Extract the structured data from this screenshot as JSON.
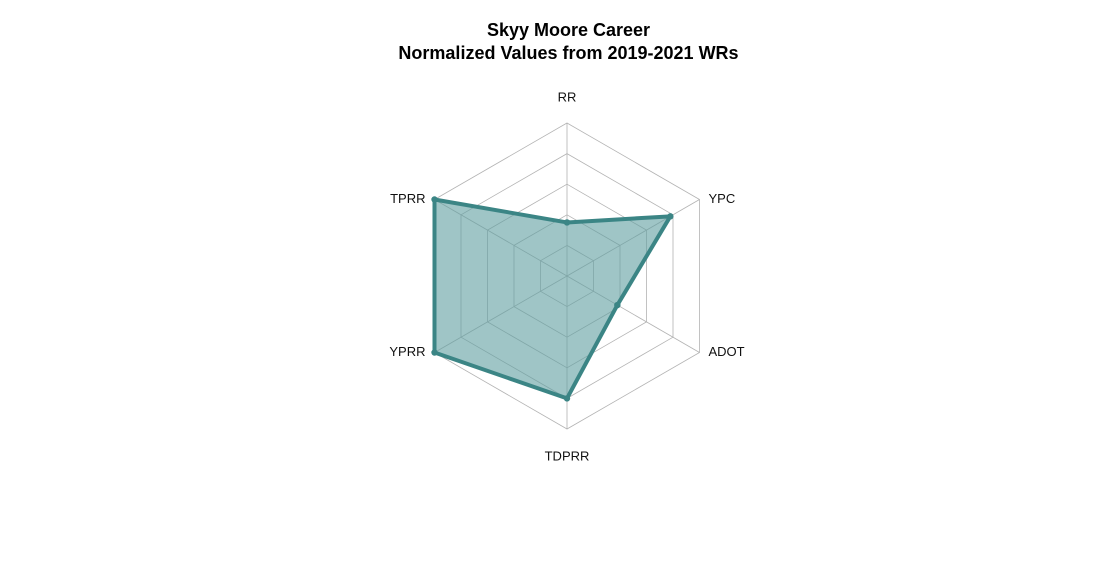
{
  "chart_data": {
    "type": "radar",
    "title": "Skyy Moore Career",
    "subtitle": "Normalized Values from 2019-2021 WRs",
    "axes": [
      "RR",
      "YPC",
      "ADOT",
      "TDPRR",
      "YPRR",
      "TPRR"
    ],
    "values": [
      0.35,
      0.78,
      0.38,
      0.8,
      1.0,
      1.0
    ],
    "range": [
      0,
      1
    ],
    "grid_levels": 5,
    "grid": true,
    "colors": {
      "fill": "#5f9ea0",
      "line": "#3b8585",
      "grid": "#b3b3b3"
    }
  }
}
